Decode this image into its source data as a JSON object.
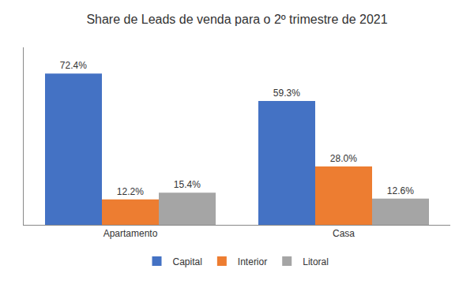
{
  "chart_data": {
    "type": "bar",
    "title": "Share de Leads de venda para o 2º trimestre de 2021",
    "categories": [
      "Apartamento",
      "Casa"
    ],
    "series": [
      {
        "name": "Capital",
        "color": "#4472C4",
        "values": [
          72.4,
          59.3
        ],
        "value_labels": [
          "72.4%",
          "59.3%"
        ]
      },
      {
        "name": "Interior",
        "color": "#ED7D31",
        "values": [
          12.2,
          28.0
        ],
        "value_labels": [
          "12.2%",
          "28.0%"
        ]
      },
      {
        "name": "Litoral",
        "color": "#A5A5A5",
        "values": [
          15.4,
          12.6
        ],
        "value_labels": [
          "15.4%",
          "12.6%"
        ]
      }
    ],
    "ylim": [
      0,
      85
    ],
    "data_labels": true,
    "tick_labels": "x",
    "grid": false,
    "legend": "bottom"
  }
}
